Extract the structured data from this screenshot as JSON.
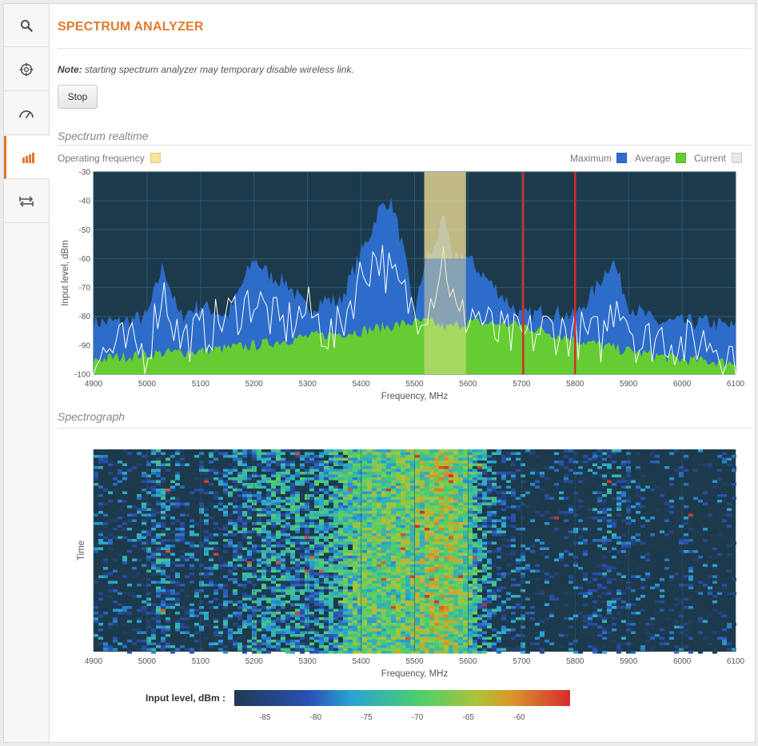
{
  "sidebar": {
    "items": [
      {
        "icon": "search-icon",
        "active": false
      },
      {
        "icon": "crosshair-icon",
        "active": false
      },
      {
        "icon": "gauge-icon",
        "active": false
      },
      {
        "icon": "signal-bars-icon",
        "active": true
      },
      {
        "icon": "transfer-arrows-icon",
        "active": false
      }
    ]
  },
  "page": {
    "title": "SPECTRUM ANALYZER",
    "note_label": "Note:",
    "note_text": " starting spectrum analyzer may temporary disable wireless link.",
    "stop_label": "Stop"
  },
  "colors": {
    "accent": "#e07a2f",
    "maximum": "#2f6fd0",
    "average": "#66cc33",
    "current": "#e8e8e8",
    "operating": "#f5e59a",
    "plot_bg": "#1c3a4c",
    "marker": "#d62c2c"
  },
  "realtime": {
    "section_title": "Spectrum realtime",
    "operating_label": "Operating frequency",
    "legend": {
      "maximum": "Maximum",
      "average": "Average",
      "current": "Current"
    }
  },
  "spectrograph": {
    "section_title": "Spectrograph",
    "scale_label": "Input level, dBm :",
    "scale_ticks": [
      "-85",
      "-80",
      "-75",
      "-70",
      "-65",
      "-60"
    ]
  },
  "chart_data": [
    {
      "type": "area",
      "xlabel": "Frequency, MHz",
      "ylabel": "Input level, dBm",
      "xlim": [
        4900,
        6100
      ],
      "ylim": [
        -100,
        -30
      ],
      "xticks": [
        "4900",
        "5000",
        "5100",
        "5200",
        "5300",
        "5400",
        "5500",
        "5600",
        "5700",
        "5800",
        "5900",
        "6000",
        "6100"
      ],
      "yticks": [
        "-30",
        "-40",
        "-50",
        "-60",
        "-70",
        "-80",
        "-90",
        "-100"
      ],
      "operating_band": [
        5518,
        5596
      ],
      "markers": [
        5703,
        5800
      ],
      "series": [
        {
          "name": "Maximum",
          "x": [
            4900,
            4950,
            5000,
            5030,
            5060,
            5100,
            5150,
            5200,
            5230,
            5260,
            5300,
            5330,
            5360,
            5400,
            5420,
            5430,
            5450,
            5460,
            5480,
            5500,
            5520,
            5540,
            5555,
            5570,
            5590,
            5620,
            5660,
            5700,
            5750,
            5800,
            5840,
            5870,
            5900,
            5950,
            6000,
            6050,
            6100
          ],
          "values": [
            -82,
            -82,
            -80,
            -62,
            -80,
            -76,
            -80,
            -60,
            -66,
            -68,
            -78,
            -74,
            -75,
            -58,
            -50,
            -44,
            -40,
            -42,
            -58,
            -80,
            -60,
            -56,
            -42,
            -62,
            -58,
            -64,
            -72,
            -80,
            -78,
            -80,
            -70,
            -60,
            -76,
            -82,
            -82,
            -82,
            -84
          ]
        },
        {
          "name": "Average",
          "x": [
            4900,
            5000,
            5100,
            5200,
            5300,
            5400,
            5500,
            5530,
            5560,
            5600,
            5700,
            5800,
            5900,
            6000,
            6100
          ],
          "values": [
            -95,
            -93,
            -92,
            -90,
            -87,
            -85,
            -82,
            -82,
            -84,
            -82,
            -83,
            -88,
            -92,
            -95,
            -96
          ]
        },
        {
          "name": "Current",
          "x": [
            4900,
            4950,
            5000,
            5030,
            5060,
            5100,
            5150,
            5200,
            5250,
            5300,
            5350,
            5400,
            5430,
            5460,
            5500,
            5530,
            5555,
            5580,
            5610,
            5650,
            5700,
            5750,
            5800,
            5850,
            5880,
            5920,
            5960,
            6000,
            6050,
            6100
          ],
          "values": [
            -95,
            -90,
            -92,
            -70,
            -88,
            -86,
            -80,
            -74,
            -84,
            -78,
            -88,
            -66,
            -58,
            -68,
            -78,
            -74,
            -58,
            -82,
            -78,
            -86,
            -88,
            -84,
            -86,
            -88,
            -72,
            -90,
            -86,
            -90,
            -88,
            -94
          ]
        }
      ]
    },
    {
      "type": "heatmap",
      "xlabel": "Frequency, MHz",
      "ylabel": "Time",
      "xlim": [
        4900,
        6100
      ],
      "xticks": [
        "4900",
        "5000",
        "5100",
        "5200",
        "5300",
        "5400",
        "5500",
        "5600",
        "5700",
        "5800",
        "5900",
        "6000",
        "6100"
      ],
      "zlim": [
        -88,
        -55
      ]
    }
  ]
}
